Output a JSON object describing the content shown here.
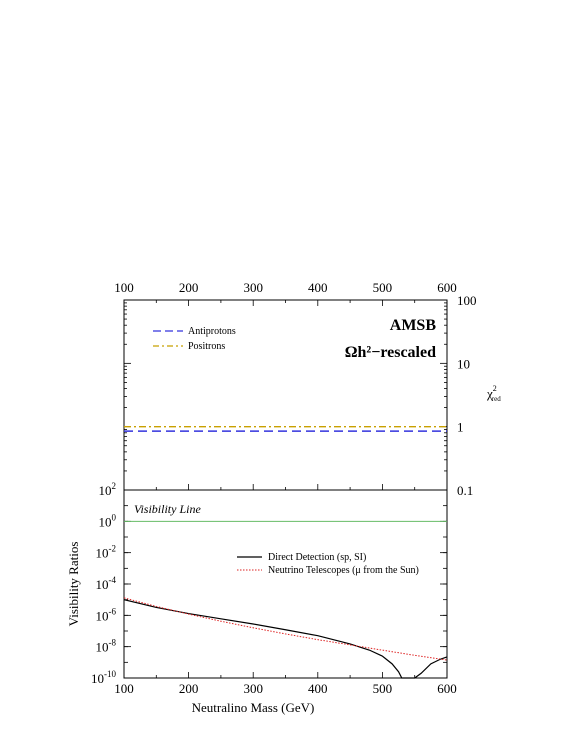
{
  "chart_data": [
    {
      "type": "line",
      "panel": "top",
      "annotations": [
        "AMSB",
        "Ωh²−rescaled"
      ],
      "xlim": [
        100,
        600
      ],
      "x_ticks": [
        "100",
        "200",
        "300",
        "400",
        "500",
        "600"
      ],
      "y_right_label": "χ²red",
      "y_right_label_main": "χ",
      "y_right_label_sup": "2",
      "y_right_label_sub": "red",
      "ylim": [
        0.1,
        100
      ],
      "y_scale": "log",
      "y_right_ticks": [
        "100",
        "10",
        "1",
        "0.1"
      ],
      "legend_position": "top-left",
      "series": [
        {
          "name": "Antiprotons",
          "color": "#3333dd",
          "x": [
            100,
            600
          ],
          "y": [
            0.85,
            0.85
          ]
        },
        {
          "name": "Positrons",
          "color": "#c8a000",
          "x": [
            100,
            600
          ],
          "y": [
            1.0,
            1.0
          ]
        }
      ]
    },
    {
      "type": "line",
      "panel": "bottom",
      "xlabel": "Neutralino Mass (GeV)",
      "ylabel": "Visibility Ratios",
      "xlim": [
        100,
        600
      ],
      "x_ticks": [
        "100",
        "200",
        "300",
        "400",
        "500",
        "600"
      ],
      "ylim": [
        1e-10,
        100
      ],
      "y_scale": "log",
      "y_ticks": [
        {
          "base": "10",
          "exp": "2",
          "value": 100
        },
        {
          "base": "10",
          "exp": "0",
          "value": 1
        },
        {
          "base": "10",
          "exp": "-2",
          "value": 0.01
        },
        {
          "base": "10",
          "exp": "-4",
          "value": 0.0001
        },
        {
          "base": "10",
          "exp": "-6",
          "value": 1e-06
        },
        {
          "base": "10",
          "exp": "-8",
          "value": 1e-08
        },
        {
          "base": "10",
          "exp": "-10",
          "value": 1e-10
        }
      ],
      "visibility_line": {
        "label": "Visibility Line",
        "y": 1,
        "color": "#66bb66"
      },
      "legend_position": "center-right",
      "series": [
        {
          "name": "Direct Detection (sp, SI)",
          "color": "#000000",
          "x": [
            100,
            150,
            200,
            250,
            300,
            350,
            400,
            450,
            480,
            500,
            515,
            525,
            530,
            540,
            550,
            560,
            575,
            590,
            600
          ],
          "y": [
            1e-05,
            3.2e-06,
            1.3e-06,
            6e-07,
            2.8e-07,
            1.2e-07,
            5e-08,
            1.5e-08,
            6e-09,
            2.5e-09,
            8e-10,
            2.5e-10,
            1e-10,
            1e-10,
            1e-10,
            2e-10,
            8e-10,
            1.6e-09,
            2.2e-09
          ]
        },
        {
          "name": "Neutrino Telescopes (μ from the Sun)",
          "color": "#dd2222",
          "x": [
            100,
            150,
            200,
            250,
            300,
            350,
            400,
            450,
            500,
            550,
            600
          ],
          "y": [
            1.3e-05,
            3.7e-06,
            1.2e-06,
            4.2e-07,
            1.6e-07,
            6.5e-08,
            2.8e-08,
            1.3e-08,
            6e-09,
            2.8e-09,
            1.4e-09
          ]
        }
      ]
    }
  ]
}
